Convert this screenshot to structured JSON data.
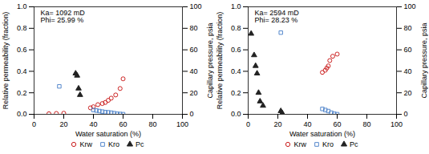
{
  "chart_data": [
    {
      "type": "scatter",
      "annotations": [
        "Ka= 1092 mD\nPhi= 25.99 %"
      ],
      "xlabel": "Water saturation (%)",
      "ylabel": "Relative permeability (fraction)",
      "y2label": "Capillary pressure, psia",
      "xlim": [
        0,
        100
      ],
      "xticks": [
        0,
        20,
        40,
        60,
        80,
        100
      ],
      "ylim": [
        0,
        1
      ],
      "yticks": [
        {
          "value": 0,
          "label": "0.0"
        },
        0.2,
        0.4,
        0.6,
        0.8,
        {
          "value": 1,
          "label": "1.0"
        }
      ],
      "y2lim": [
        0,
        100
      ],
      "y2ticks": [
        0,
        20,
        40,
        60,
        80,
        100
      ],
      "grid": false,
      "legend": "bottom",
      "series": [
        {
          "name": "Krw",
          "color": "#cc2222",
          "marker": "circle",
          "x": [
            10,
            15,
            20,
            38,
            40,
            43,
            46,
            48,
            50,
            52,
            55,
            58,
            60
          ],
          "values": [
            0.005,
            0.008,
            0.01,
            0.06,
            0.07,
            0.09,
            0.1,
            0.11,
            0.13,
            0.15,
            0.18,
            0.24,
            0.33
          ]
        },
        {
          "name": "Kro",
          "color": "#5588cc",
          "marker": "square",
          "x": [
            17,
            40,
            42,
            44,
            46,
            48,
            50,
            52,
            54,
            56,
            58,
            60
          ],
          "values": [
            0.26,
            0.04,
            0.035,
            0.03,
            0.025,
            0.02,
            0.018,
            0.015,
            0.01,
            0.005,
            0.003,
            0.001
          ]
        },
        {
          "name": "Pc",
          "color": "#222222",
          "marker": "triangle",
          "axis": "y2",
          "x": [
            28,
            29,
            30,
            31
          ],
          "values": [
            38,
            36,
            24,
            18
          ]
        }
      ]
    },
    {
      "type": "scatter",
      "annotations": [
        "Ka= 2594 mD\nPhi= 28.23 %"
      ],
      "xlabel": "Water saturation (%)",
      "ylabel": "Relative permeability (fraction)",
      "y2label": "Capillary pressure, psia",
      "xlim": [
        0,
        100
      ],
      "xticks": [
        0,
        20,
        40,
        60,
        80,
        100
      ],
      "ylim": [
        0,
        1
      ],
      "yticks": [
        {
          "value": 0,
          "label": "0.0"
        },
        0.2,
        0.4,
        0.6,
        0.8,
        {
          "value": 1,
          "label": "1.0"
        }
      ],
      "y2lim": [
        0,
        100
      ],
      "y2ticks": [
        0,
        20,
        40,
        60,
        80,
        100
      ],
      "grid": false,
      "legend": "bottom",
      "series": [
        {
          "name": "Krw",
          "color": "#cc2222",
          "marker": "circle",
          "x": [
            50,
            52,
            53,
            54,
            55,
            57,
            60
          ],
          "values": [
            0.39,
            0.41,
            0.43,
            0.45,
            0.5,
            0.54,
            0.56
          ]
        },
        {
          "name": "Kro",
          "color": "#5588cc",
          "marker": "square",
          "x": [
            22,
            50,
            52,
            54,
            56,
            58,
            60
          ],
          "values": [
            0.76,
            0.05,
            0.04,
            0.03,
            0.015,
            0.005,
            0.001
          ]
        },
        {
          "name": "Pc",
          "color": "#222222",
          "marker": "triangle",
          "axis": "y2",
          "x": [
            2,
            4,
            5,
            6,
            7,
            8,
            10,
            22,
            23
          ],
          "values": [
            75,
            55,
            45,
            38,
            20,
            12,
            8,
            3,
            1
          ]
        }
      ]
    }
  ]
}
